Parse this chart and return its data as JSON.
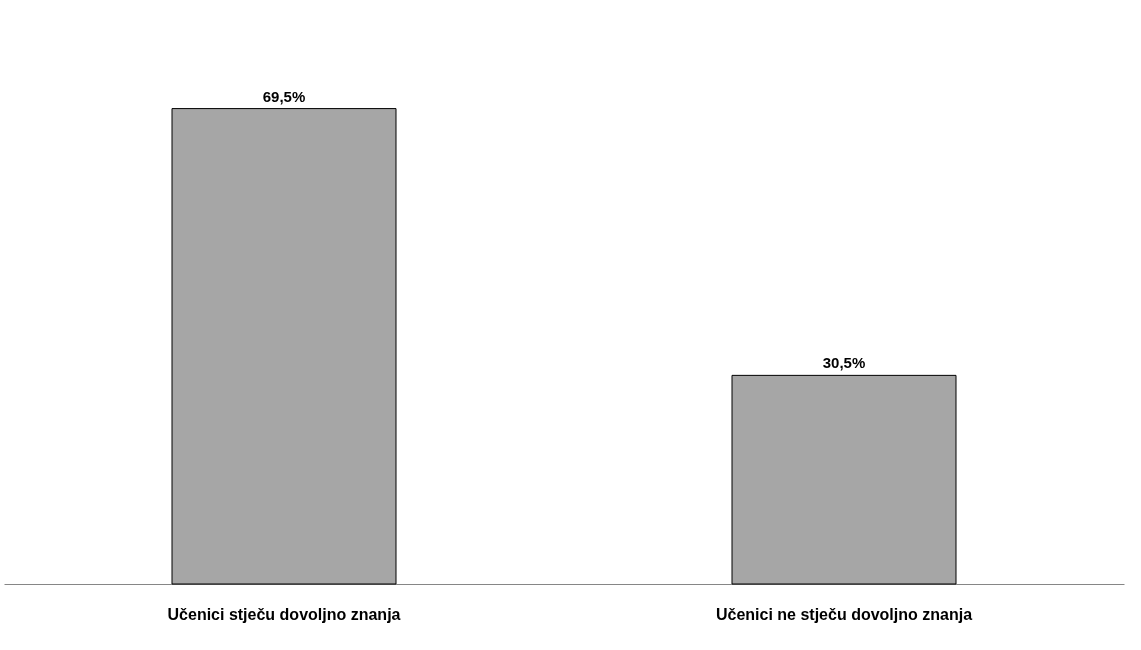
{
  "chart_data": {
    "type": "bar",
    "categories": [
      "Učenici stječu dovoljno znanja",
      "Učenici ne stječu dovoljno znanja"
    ],
    "values": [
      69.5,
      30.5
    ],
    "value_labels": [
      "69,5%",
      "30,5%"
    ],
    "color": "#a6a6a6",
    "grid": false
  }
}
